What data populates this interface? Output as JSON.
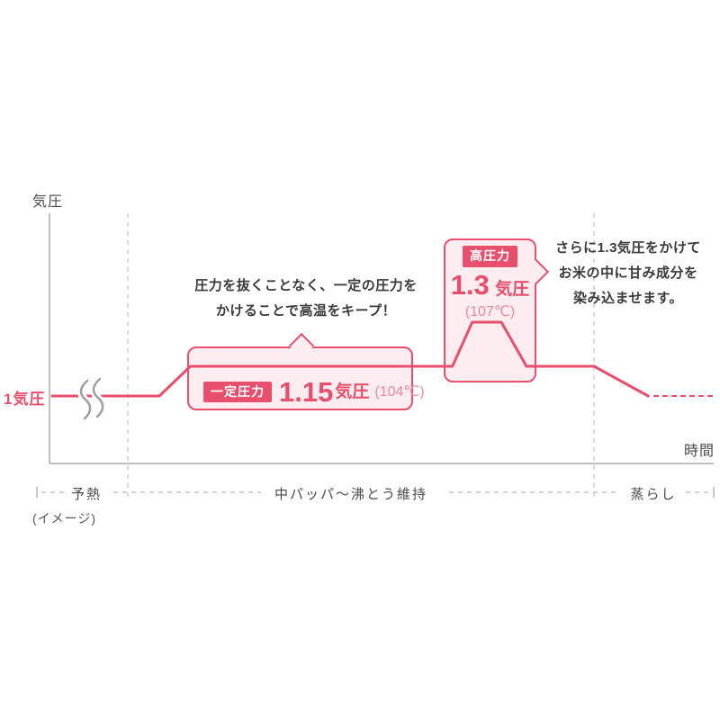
{
  "colors": {
    "primary_pink": "#e84f6d",
    "light_pink_fill": "#fdedf0",
    "temp_pink": "#ef8aa0",
    "axis_gray": "#9b9b9b",
    "dash_gray": "#c9c9c9",
    "steam_gray": "#9e9e9e",
    "dark_text": "#3a3a3a"
  },
  "axes": {
    "y_label": "気圧",
    "x_label": "時間"
  },
  "baseline": {
    "label": "1気圧"
  },
  "image_note": "(イメージ)",
  "phases": {
    "p1": "予熱",
    "p2": "中パッパ〜沸とう維持",
    "p3": "蒸らし"
  },
  "constant_callout": {
    "line1": "圧力を抜くことなく、一定の圧力を",
    "line2": "かけることで高温をキープ！",
    "badge": "一定圧力",
    "value": "1.15",
    "unit": "気圧",
    "temp": "(104℃)"
  },
  "high_callout": {
    "badge": "高圧力",
    "value": "1.3",
    "unit": "気圧",
    "temp": "(107℃)",
    "note1": "さらに1.3気圧をかけて",
    "note2": "お米の中に甘み成分を",
    "note3": "染み込ませます。"
  },
  "chart_data": {
    "type": "line",
    "title": "",
    "xlabel": "時間",
    "ylabel": "気圧",
    "x_axis_numeric": false,
    "legend": "none",
    "grid": "off",
    "y_levels": [
      {
        "pressure_atm": 1.0,
        "label": "1気圧"
      },
      {
        "pressure_atm": 1.15,
        "label": "1.15気圧",
        "temperature": "104℃",
        "badge": "一定圧力"
      },
      {
        "pressure_atm": 1.3,
        "label": "1.3気圧",
        "temperature": "107℃",
        "badge": "高圧力"
      }
    ],
    "phases": [
      "予熱",
      "中パッパ〜沸とう維持",
      "蒸らし"
    ],
    "phase_boundaries_x_rel": [
      0.114,
      0.819
    ],
    "profile_points": [
      [
        0,
        1
      ],
      [
        0.162,
        1
      ],
      [
        0.209,
        1.15
      ],
      [
        0.605,
        1.15
      ],
      [
        0.635,
        1.3
      ],
      [
        0.679,
        1.3
      ],
      [
        0.717,
        1.15
      ],
      [
        0.819,
        1.15
      ],
      [
        0.901,
        1
      ]
    ],
    "tail_dashed": [
      [
        0.909,
        1
      ],
      [
        1.0,
        1
      ]
    ],
    "annotations": [
      "圧力を抜くことなく、一定の圧力をかけることで高温をキープ！",
      "さらに1.3気圧をかけてお米の中に甘み成分を染み込ませます。"
    ]
  }
}
